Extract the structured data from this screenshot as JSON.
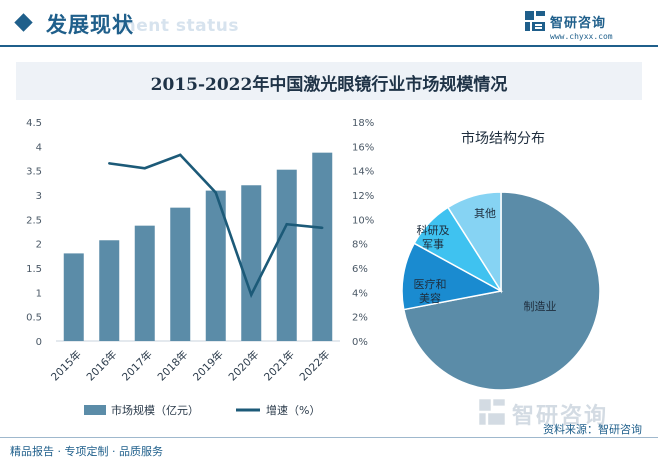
{
  "header": {
    "section_title": "发展现状",
    "section_subtitle": "ment status",
    "brand_name": "智研咨询",
    "brand_url": "www.chyxx.com"
  },
  "chart_title": "2015-2022年中国激光眼镜行业市场规模情况",
  "chart_data": [
    {
      "type": "bar",
      "categories": [
        "2015年",
        "2016年",
        "2017年",
        "2018年",
        "2019年",
        "2020年",
        "2021年",
        "2022年"
      ],
      "series": [
        {
          "name": "市场规模（亿元）",
          "type": "bar",
          "axis": "left",
          "values": [
            1.8,
            2.07,
            2.37,
            2.74,
            3.09,
            3.2,
            3.52,
            3.87
          ]
        },
        {
          "name": "增速（%）",
          "type": "line",
          "axis": "right",
          "values": [
            null,
            14.6,
            14.2,
            15.3,
            12.2,
            3.8,
            9.6,
            9.3
          ]
        }
      ],
      "y_left": {
        "ticks": [
          "0",
          "0.5",
          "1",
          "1.5",
          "2",
          "2.5",
          "3",
          "3.5",
          "4",
          "4.5"
        ],
        "ylim": [
          0,
          4.5
        ]
      },
      "y_right": {
        "ticks": [
          "0%",
          "2%",
          "4%",
          "6%",
          "8%",
          "10%",
          "12%",
          "14%",
          "16%",
          "18%"
        ],
        "ylim": [
          0,
          18
        ]
      },
      "legend_position": "bottom",
      "colors": {
        "bar": "#5b8ca8",
        "line": "#1c5a78"
      }
    },
    {
      "type": "pie",
      "title": "市场结构分布",
      "slices": [
        {
          "label": "制造业",
          "value": 72,
          "color": "#5b8ca8"
        },
        {
          "label": "医疗和美容",
          "value": 11,
          "color": "#1a8bd0"
        },
        {
          "label": "科研及军事",
          "value": 8,
          "color": "#3fc2f0"
        },
        {
          "label": "其他",
          "value": 9,
          "color": "#86d3f3"
        }
      ]
    }
  ],
  "footer": {
    "left": "精品报告 · 专项定制 · 品质服务",
    "watermark": "智研咨询",
    "source": "资料来源：智研咨询"
  }
}
